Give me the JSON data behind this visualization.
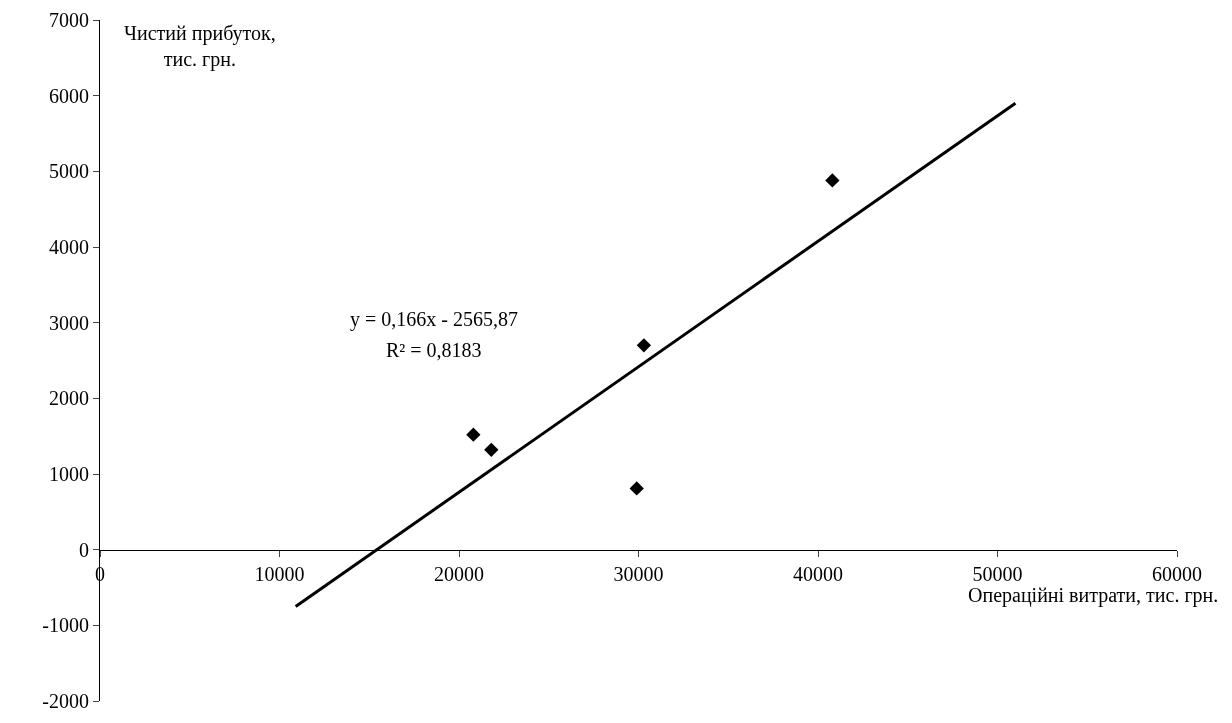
{
  "chart_data": {
    "type": "scatter",
    "xlabel": "Операційні витрати, тис. грн.",
    "ylabel": "Чистий прибуток, тис. грн.",
    "annotations": [
      "y = 0,166x - 2565,87",
      "R² = 0,8183"
    ],
    "series": [
      {
        "color": "#000000",
        "marker": "diamond",
        "x": [
          20800,
          21800,
          29900,
          30300,
          40800
        ],
        "values": [
          1520,
          1320,
          810,
          2700,
          4880
        ]
      },
      {
        "type": "line",
        "color": "#000000",
        "marker": "none",
        "line_style": "solid",
        "x": [
          10900,
          51000
        ],
        "values": [
          -750,
          5900
        ]
      }
    ],
    "xlim": [
      0,
      60000
    ],
    "xticks": [
      0,
      10000,
      20000,
      30000,
      40000,
      50000,
      60000
    ],
    "ylim": [
      -2000,
      7000
    ],
    "yticks": [
      -2000,
      -1000,
      0,
      1000,
      2000,
      3000,
      4000,
      5000,
      6000,
      7000
    ],
    "grid": false
  }
}
